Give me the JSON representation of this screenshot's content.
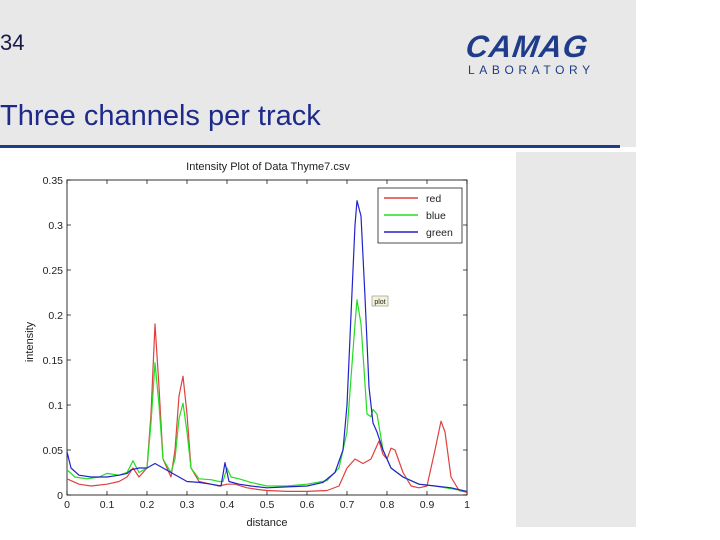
{
  "slide": {
    "number": "34",
    "title": "Three channels per track",
    "logo_main": "CAMAG",
    "logo_sub": "LABORATORY"
  },
  "colors": {
    "title": "#1e2a8a",
    "logo": "#1e3c8a",
    "band": "#e8e8e8",
    "red": "#e04040",
    "blue_series": "#22dd22",
    "green_series": "#2222cc"
  },
  "chart_data": {
    "type": "line",
    "title": "Intensity Plot of Data Thyme7.csv",
    "xlabel": "distance",
    "ylabel": "intensity",
    "xlim": [
      0,
      1
    ],
    "ylim": [
      0,
      0.35
    ],
    "x_ticks": [
      "0",
      "0.1",
      "0.2",
      "0.3",
      "0.4",
      "0.5",
      "0.6",
      "0.7",
      "0.8",
      "0.9",
      "1"
    ],
    "y_ticks": [
      "0",
      "0.05",
      "0.1",
      "0.15",
      "0.2",
      "0.25",
      "0.3",
      "0.35"
    ],
    "grid": false,
    "legend_position": "top-right",
    "annotation": "plot",
    "series": [
      {
        "name": "red",
        "color": "#e04040",
        "points": [
          [
            0,
            0.018
          ],
          [
            0.03,
            0.012
          ],
          [
            0.06,
            0.01
          ],
          [
            0.1,
            0.012
          ],
          [
            0.13,
            0.015
          ],
          [
            0.15,
            0.02
          ],
          [
            0.165,
            0.03
          ],
          [
            0.18,
            0.02
          ],
          [
            0.2,
            0.03
          ],
          [
            0.21,
            0.09
          ],
          [
            0.22,
            0.19
          ],
          [
            0.23,
            0.12
          ],
          [
            0.24,
            0.04
          ],
          [
            0.26,
            0.02
          ],
          [
            0.27,
            0.05
          ],
          [
            0.28,
            0.11
          ],
          [
            0.29,
            0.132
          ],
          [
            0.3,
            0.09
          ],
          [
            0.31,
            0.03
          ],
          [
            0.33,
            0.015
          ],
          [
            0.36,
            0.012
          ],
          [
            0.38,
            0.01
          ],
          [
            0.4,
            0.012
          ],
          [
            0.42,
            0.012
          ],
          [
            0.45,
            0.008
          ],
          [
            0.48,
            0.006
          ],
          [
            0.5,
            0.005
          ],
          [
            0.55,
            0.004
          ],
          [
            0.6,
            0.004
          ],
          [
            0.65,
            0.005
          ],
          [
            0.68,
            0.01
          ],
          [
            0.7,
            0.03
          ],
          [
            0.72,
            0.04
          ],
          [
            0.74,
            0.035
          ],
          [
            0.76,
            0.04
          ],
          [
            0.78,
            0.06
          ],
          [
            0.79,
            0.045
          ],
          [
            0.8,
            0.04
          ],
          [
            0.81,
            0.052
          ],
          [
            0.82,
            0.05
          ],
          [
            0.84,
            0.025
          ],
          [
            0.86,
            0.01
          ],
          [
            0.88,
            0.008
          ],
          [
            0.9,
            0.01
          ],
          [
            0.92,
            0.05
          ],
          [
            0.935,
            0.082
          ],
          [
            0.945,
            0.07
          ],
          [
            0.96,
            0.02
          ],
          [
            0.98,
            0.005
          ],
          [
            1,
            0.003
          ]
        ]
      },
      {
        "name": "blue",
        "color": "#22dd22",
        "points": [
          [
            0,
            0.028
          ],
          [
            0.02,
            0.02
          ],
          [
            0.05,
            0.018
          ],
          [
            0.08,
            0.02
          ],
          [
            0.1,
            0.024
          ],
          [
            0.13,
            0.022
          ],
          [
            0.15,
            0.025
          ],
          [
            0.165,
            0.038
          ],
          [
            0.18,
            0.025
          ],
          [
            0.2,
            0.03
          ],
          [
            0.21,
            0.08
          ],
          [
            0.22,
            0.147
          ],
          [
            0.23,
            0.1
          ],
          [
            0.24,
            0.04
          ],
          [
            0.26,
            0.025
          ],
          [
            0.27,
            0.04
          ],
          [
            0.28,
            0.085
          ],
          [
            0.29,
            0.102
          ],
          [
            0.3,
            0.07
          ],
          [
            0.31,
            0.03
          ],
          [
            0.33,
            0.018
          ],
          [
            0.36,
            0.017
          ],
          [
            0.38,
            0.015
          ],
          [
            0.39,
            0.015
          ],
          [
            0.4,
            0.03
          ],
          [
            0.41,
            0.02
          ],
          [
            0.43,
            0.018
          ],
          [
            0.46,
            0.014
          ],
          [
            0.5,
            0.01
          ],
          [
            0.55,
            0.01
          ],
          [
            0.6,
            0.012
          ],
          [
            0.65,
            0.016
          ],
          [
            0.68,
            0.03
          ],
          [
            0.7,
            0.07
          ],
          [
            0.72,
            0.19
          ],
          [
            0.725,
            0.217
          ],
          [
            0.735,
            0.19
          ],
          [
            0.75,
            0.09
          ],
          [
            0.76,
            0.087
          ],
          [
            0.765,
            0.095
          ],
          [
            0.775,
            0.09
          ],
          [
            0.79,
            0.05
          ],
          [
            0.81,
            0.03
          ],
          [
            0.84,
            0.02
          ],
          [
            0.88,
            0.012
          ],
          [
            0.92,
            0.01
          ],
          [
            0.96,
            0.007
          ],
          [
            1,
            0.004
          ]
        ]
      },
      {
        "name": "green",
        "color": "#2222cc",
        "points": [
          [
            0,
            0.048
          ],
          [
            0.01,
            0.03
          ],
          [
            0.03,
            0.022
          ],
          [
            0.06,
            0.02
          ],
          [
            0.1,
            0.02
          ],
          [
            0.13,
            0.022
          ],
          [
            0.15,
            0.024
          ],
          [
            0.16,
            0.028
          ],
          [
            0.18,
            0.03
          ],
          [
            0.2,
            0.03
          ],
          [
            0.22,
            0.035
          ],
          [
            0.24,
            0.03
          ],
          [
            0.26,
            0.025
          ],
          [
            0.28,
            0.02
          ],
          [
            0.3,
            0.015
          ],
          [
            0.33,
            0.014
          ],
          [
            0.36,
            0.012
          ],
          [
            0.385,
            0.01
          ],
          [
            0.395,
            0.036
          ],
          [
            0.405,
            0.015
          ],
          [
            0.43,
            0.012
          ],
          [
            0.46,
            0.01
          ],
          [
            0.5,
            0.008
          ],
          [
            0.55,
            0.009
          ],
          [
            0.6,
            0.01
          ],
          [
            0.64,
            0.014
          ],
          [
            0.67,
            0.025
          ],
          [
            0.69,
            0.05
          ],
          [
            0.7,
            0.1
          ],
          [
            0.71,
            0.2
          ],
          [
            0.72,
            0.3
          ],
          [
            0.725,
            0.327
          ],
          [
            0.735,
            0.31
          ],
          [
            0.745,
            0.22
          ],
          [
            0.755,
            0.12
          ],
          [
            0.765,
            0.08
          ],
          [
            0.775,
            0.07
          ],
          [
            0.79,
            0.05
          ],
          [
            0.81,
            0.03
          ],
          [
            0.84,
            0.02
          ],
          [
            0.88,
            0.012
          ],
          [
            0.92,
            0.01
          ],
          [
            0.96,
            0.008
          ],
          [
            1,
            0.004
          ]
        ]
      }
    ]
  }
}
